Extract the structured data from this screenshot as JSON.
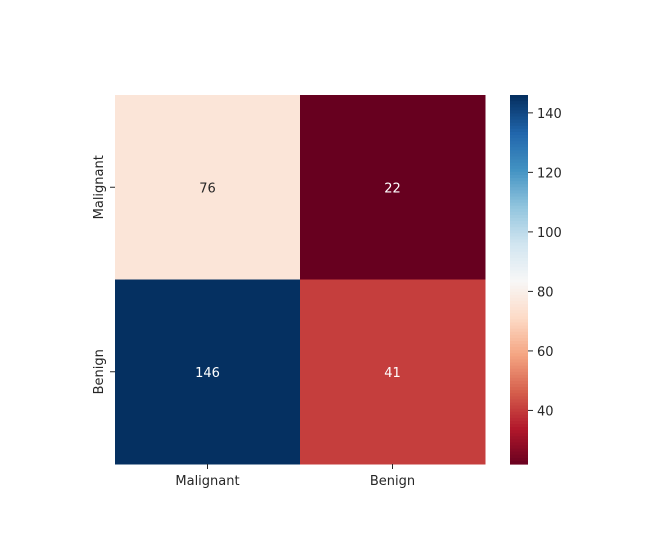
{
  "chart_data": {
    "type": "heatmap",
    "title": "",
    "xlabel": "",
    "ylabel": "",
    "x_categories": [
      "Malignant",
      "Benign"
    ],
    "y_categories": [
      "Malignant",
      "Benign"
    ],
    "values": [
      [
        76,
        22
      ],
      [
        146,
        41
      ]
    ],
    "annotations": true,
    "colormap": "RdBu",
    "color_range": [
      22,
      146
    ],
    "colorbar_ticks": [
      40,
      60,
      80,
      100,
      120,
      140
    ],
    "colorbar_placement": "right",
    "grid": false
  }
}
